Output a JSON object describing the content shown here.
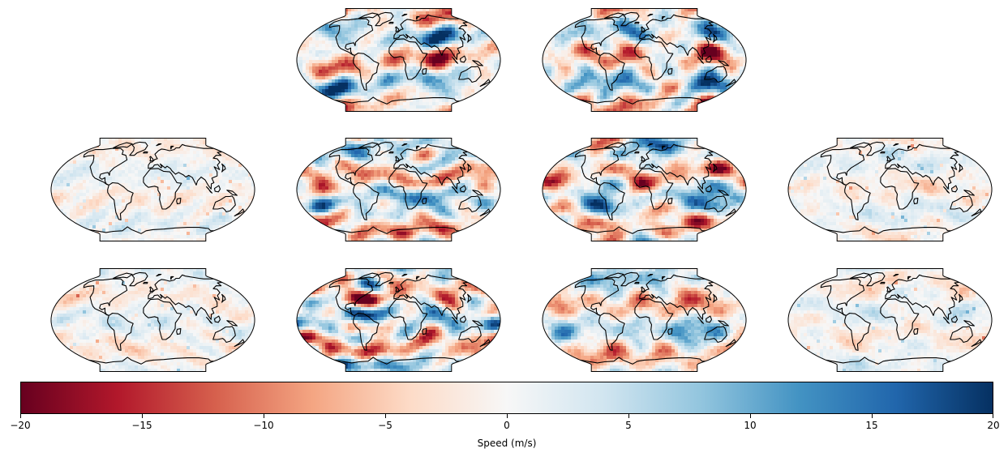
{
  "figure": {
    "colorbar": {
      "label": "Speed (m/s)",
      "min": -20,
      "max": 20,
      "ticks": [
        {
          "value": -20,
          "label": "−20"
        },
        {
          "value": -15,
          "label": "−15"
        },
        {
          "value": -10,
          "label": "−10"
        },
        {
          "value": -5,
          "label": "−5"
        },
        {
          "value": 0,
          "label": "0"
        },
        {
          "value": 5,
          "label": "5"
        },
        {
          "value": 10,
          "label": "10"
        },
        {
          "value": 15,
          "label": "15"
        },
        {
          "value": 20,
          "label": "20"
        }
      ],
      "colormap": "RdBu",
      "colors": [
        "#67001f",
        "#b2182b",
        "#d6604d",
        "#f4a582",
        "#fddbc7",
        "#f7f7f7",
        "#d1e5f0",
        "#92c5de",
        "#4393c3",
        "#2166ac",
        "#053061"
      ]
    },
    "panels": [
      {
        "id": "r1c2",
        "row": 1,
        "col": 2,
        "amplitude": "high",
        "seed": 11
      },
      {
        "id": "r1c3",
        "row": 1,
        "col": 3,
        "amplitude": "high",
        "seed": 23
      },
      {
        "id": "r2c1",
        "row": 2,
        "col": 1,
        "amplitude": "low",
        "seed": 31
      },
      {
        "id": "r2c2",
        "row": 2,
        "col": 2,
        "amplitude": "high",
        "seed": 47
      },
      {
        "id": "r2c3",
        "row": 2,
        "col": 3,
        "amplitude": "high",
        "seed": 53
      },
      {
        "id": "r2c4",
        "row": 2,
        "col": 4,
        "amplitude": "low",
        "seed": 61
      },
      {
        "id": "r3c1",
        "row": 3,
        "col": 1,
        "amplitude": "low",
        "seed": 71
      },
      {
        "id": "r3c2",
        "row": 3,
        "col": 2,
        "amplitude": "high",
        "seed": 83
      },
      {
        "id": "r3c3",
        "row": 3,
        "col": 3,
        "amplitude": "high",
        "seed": 97
      },
      {
        "id": "r3c4",
        "row": 3,
        "col": 4,
        "amplitude": "low",
        "seed": 101
      }
    ]
  }
}
